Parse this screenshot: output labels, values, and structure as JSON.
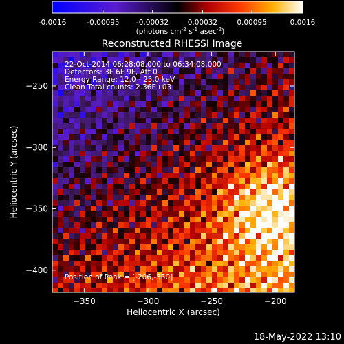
{
  "colorbar": {
    "tick_labels": [
      "-0.0016",
      "-0.00095",
      "-0.00032",
      "0.00032",
      "0.00095",
      "0.0016"
    ],
    "tick_values": [
      -0.0016,
      -0.00095,
      -0.00032,
      0.00032,
      0.00095,
      0.0016
    ],
    "range": [
      -0.0016,
      0.0016
    ],
    "unit_parts": {
      "a": "(photons cm",
      "b": "-2",
      "c": " s",
      "d": "-1",
      "e": " asec",
      "f": "-2",
      "g": ")"
    }
  },
  "chart_data": {
    "type": "heatmap",
    "title": "Reconstructed RHESSI Image",
    "xlabel": "Heliocentric X (arcsec)",
    "ylabel": "Heliocentric Y (arcsec)",
    "xlim": [
      -375,
      -185
    ],
    "ylim": [
      -418,
      -222
    ],
    "x_ticks": [
      -350,
      -300,
      -250,
      -200
    ],
    "x_tick_labels": [
      "−350",
      "−300",
      "−250",
      "−200"
    ],
    "y_ticks": [
      -400,
      -350,
      -300,
      -250
    ],
    "y_tick_labels": [
      "−400",
      "−350",
      "−300",
      "−250"
    ],
    "peak": [
      -206,
      -350
    ],
    "info_lines": [
      "22-Oct-2014 06:28:08.000 to 06:34:08.000",
      "Detectors: 3F 6F 9F, Att 0",
      "Energy Range: 12.0 - 25.0 keV",
      "Clean     Total counts: 2.36E+03"
    ],
    "peak_label": "Position of Peak = [-206,-350]"
  },
  "footer": {
    "timestamp": "18-May-2022 13:10"
  }
}
